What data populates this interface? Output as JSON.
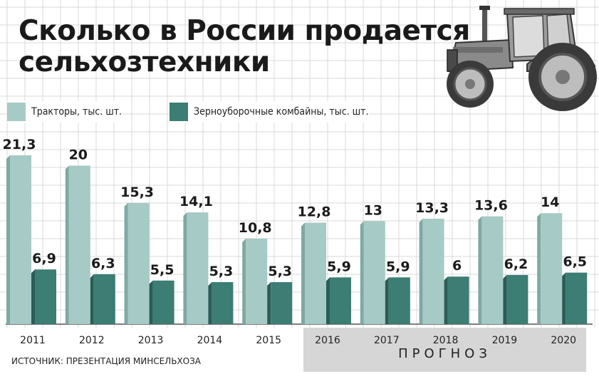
{
  "title_line1": "Сколько в России продается",
  "title_line2": "сельхозтехники",
  "legend": {
    "tractors": "Тракторы, тыс. шт.",
    "combines": "Зерноуборочные комбайны, тыс. шт."
  },
  "source": "ИСТОЧНИК: ПРЕЗЕНТАЦИЯ МИНСЕЛЬХОЗА",
  "forecast_label": "ПРОГНОЗ",
  "colors": {
    "tractors": "#a6cac5",
    "tractors_side": "#7fa9a3",
    "combines": "#3c7d74",
    "combines_side": "#2b5c55",
    "grid": "#d9d9d9",
    "forecast_band": "#d6d6d6"
  },
  "chart_data": {
    "type": "bar",
    "categories": [
      "2011",
      "2012",
      "2013",
      "2014",
      "2015",
      "2016",
      "2017",
      "2018",
      "2019",
      "2020"
    ],
    "series": [
      {
        "name": "Тракторы, тыс. шт.",
        "values": [
          21.3,
          20,
          15.3,
          14.1,
          10.8,
          12.8,
          13,
          13.3,
          13.6,
          14
        ],
        "labels": [
          "21,3",
          "20",
          "15,3",
          "14,1",
          "10,8",
          "12,8",
          "13",
          "13,3",
          "13,6",
          "14"
        ]
      },
      {
        "name": "Зерноуборочные комбайны, тыс. шт.",
        "values": [
          6.9,
          6.3,
          5.5,
          5.3,
          5.3,
          5.9,
          5.9,
          6,
          6.2,
          6.5
        ],
        "labels": [
          "6,9",
          "6,3",
          "5,5",
          "5,3",
          "5,3",
          "5,9",
          "5,9",
          "6",
          "6,2",
          "6,5"
        ]
      }
    ],
    "forecast_from": "2016",
    "ylim": [
      0,
      21.3
    ],
    "grid": true
  }
}
